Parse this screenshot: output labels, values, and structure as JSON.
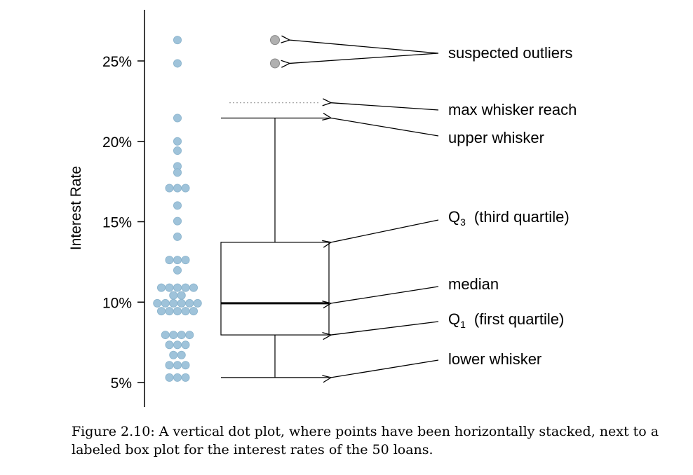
{
  "chart_data": {
    "type": "dot-and-box",
    "ylabel": "Interest Rate",
    "ylim": [
      3.3,
      28.8
    ],
    "yticks": [
      {
        "value": 5,
        "label": "5%"
      },
      {
        "value": 10,
        "label": "10%"
      },
      {
        "value": 15,
        "label": "15%"
      },
      {
        "value": 20,
        "label": "20%"
      },
      {
        "value": 25,
        "label": "25%"
      }
    ],
    "dot_color": "#9fc3da",
    "outlier_color": "#b0b0b0",
    "dotplot_rows": [
      {
        "rate": 26.3,
        "count": 1
      },
      {
        "rate": 24.85,
        "count": 1
      },
      {
        "rate": 21.45,
        "count": 1
      },
      {
        "rate": 20.0,
        "count": 1
      },
      {
        "rate": 19.42,
        "count": 1
      },
      {
        "rate": 18.45,
        "count": 1
      },
      {
        "rate": 18.06,
        "count": 1
      },
      {
        "rate": 17.09,
        "count": 3
      },
      {
        "rate": 16.01,
        "count": 1
      },
      {
        "rate": 15.04,
        "count": 1
      },
      {
        "rate": 14.07,
        "count": 1
      },
      {
        "rate": 12.62,
        "count": 3
      },
      {
        "rate": 11.98,
        "count": 1
      },
      {
        "rate": 10.9,
        "count": 5
      },
      {
        "rate": 10.42,
        "count": 2
      },
      {
        "rate": 9.93,
        "count": 6
      },
      {
        "rate": 9.44,
        "count": 5
      },
      {
        "rate": 7.96,
        "count": 4
      },
      {
        "rate": 7.34,
        "count": 3
      },
      {
        "rate": 6.71,
        "count": 2
      },
      {
        "rate": 6.08,
        "count": 3
      },
      {
        "rate": 5.31,
        "count": 3
      }
    ],
    "boxplot": {
      "lower_whisker": 5.31,
      "q1": 7.96,
      "median": 9.93,
      "q3": 13.72,
      "upper_whisker": 21.45,
      "max_whisker_reach": 22.4,
      "outliers": [
        26.3,
        24.85
      ]
    },
    "annotations": {
      "outliers": "suspected outliers",
      "max_reach": "max whisker reach",
      "upper_whisker": "upper whisker",
      "q3_main": "Q",
      "q3_sub": "3",
      "q3_rest": "(third quartile)",
      "median": "median",
      "q1_main": "Q",
      "q1_sub": "1",
      "q1_rest": "(first quartile)",
      "lower_whisker": "lower whisker"
    }
  },
  "caption": "Figure 2.10: A vertical dot plot, where points have been horizontally stacked, next to a labeled box plot for the interest rates of the 50 loans."
}
